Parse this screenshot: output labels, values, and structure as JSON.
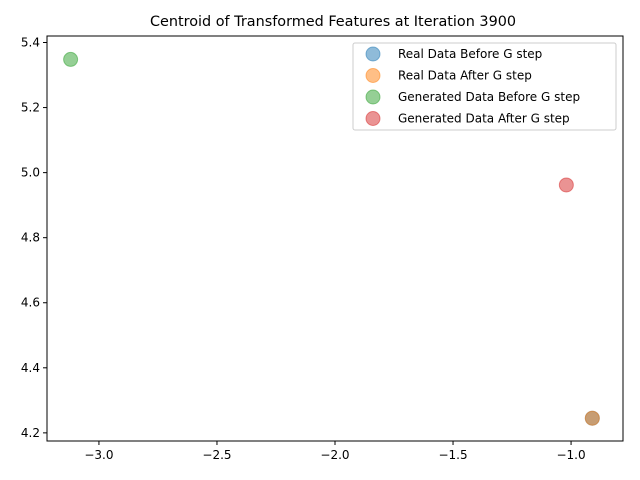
{
  "chart_data": {
    "type": "scatter",
    "title": "Centroid of Transformed Features at Iteration 3900",
    "xlabel": "",
    "ylabel": "",
    "xlim": [
      -3.22,
      -0.78
    ],
    "ylim": [
      4.175,
      5.42
    ],
    "xticks": [
      -3.0,
      -2.5,
      -2.0,
      -1.5,
      -1.0
    ],
    "xtick_labels": [
      "−3.0",
      "−2.5",
      "−2.0",
      "−1.5",
      "−1.0"
    ],
    "yticks": [
      4.2,
      4.4,
      4.6,
      4.8,
      5.0,
      5.2,
      5.4
    ],
    "ytick_labels": [
      "4.2",
      "4.4",
      "4.6",
      "4.8",
      "5.0",
      "5.2",
      "5.4"
    ],
    "grid": false,
    "legend_position": "top-right",
    "series": [
      {
        "name": "Real Data Before G step",
        "color": "#1f77b4",
        "points": [
          {
            "x": -0.91,
            "y": 4.245
          }
        ]
      },
      {
        "name": "Real Data After G step",
        "color": "#ff7f0e",
        "points": [
          {
            "x": -0.91,
            "y": 4.245
          }
        ]
      },
      {
        "name": "Generated Data Before G step",
        "color": "#2ca02c",
        "points": [
          {
            "x": -3.12,
            "y": 5.348
          }
        ]
      },
      {
        "name": "Generated Data After G step",
        "color": "#d62728",
        "points": [
          {
            "x": -1.02,
            "y": 4.962
          }
        ]
      }
    ]
  }
}
